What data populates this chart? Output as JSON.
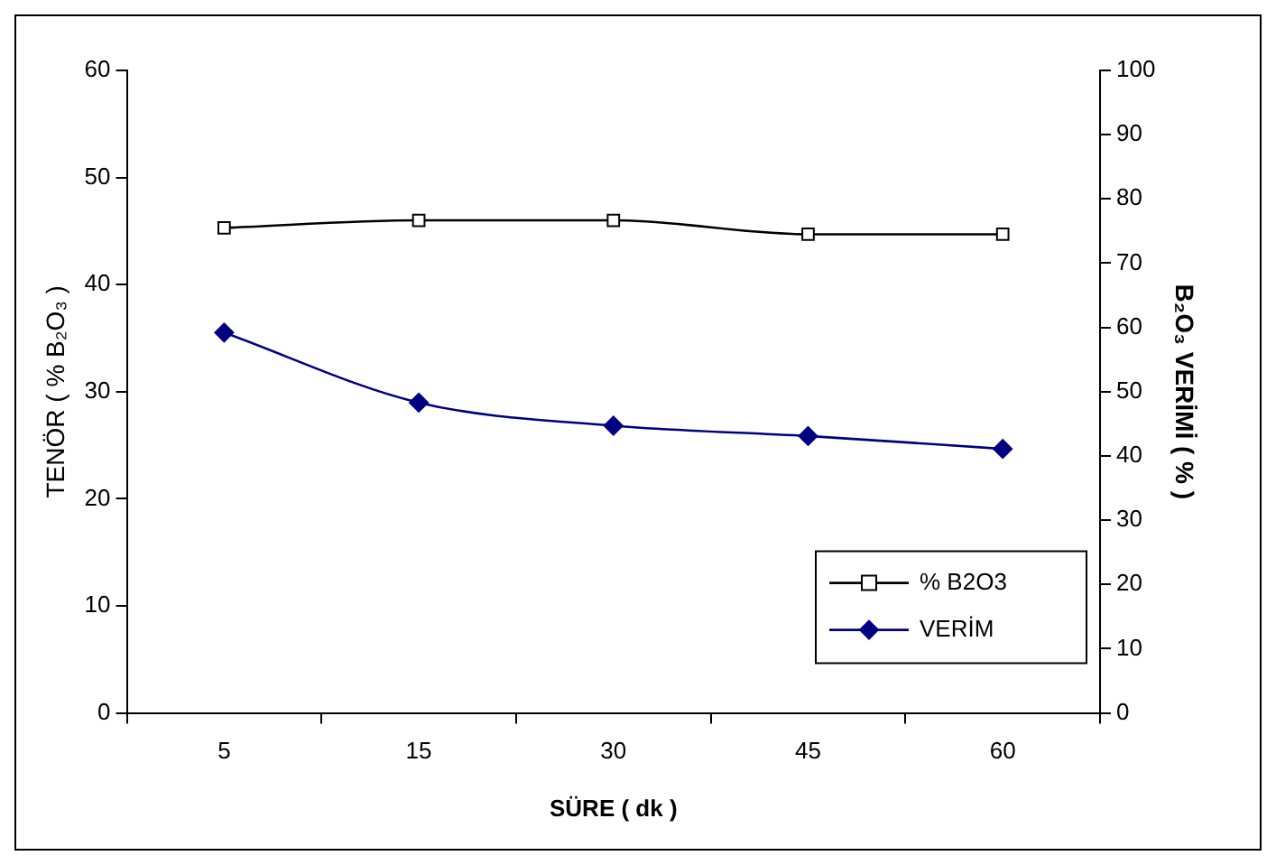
{
  "chart_data": {
    "type": "line",
    "xlabel": "SÜRE ( dk )",
    "ylabel": "TENÖR ( % B₂O₃ )",
    "y2label": "B₂O₃ VERİMİ ( % )",
    "categories": [
      "5",
      "15",
      "30",
      "45",
      "60"
    ],
    "series": [
      {
        "name": "% B2O3",
        "color": "#000000",
        "marker": "square",
        "values": [
          45.3,
          46,
          46,
          44.7,
          44.7
        ]
      },
      {
        "name": "VERİM",
        "color": "#000080",
        "marker": "diamond",
        "axis": "y2",
        "values": [
          59.2,
          48.3,
          44.7,
          43.1,
          41.1
        ]
      }
    ],
    "ylim": [
      0,
      60
    ],
    "yticks": [
      0,
      10,
      20,
      30,
      40,
      50,
      60
    ],
    "y2lim": [
      0,
      100
    ],
    "y2ticks": [
      0,
      10,
      20,
      30,
      40,
      50,
      60,
      70,
      80,
      90,
      100
    ],
    "grid": false,
    "legend": "bottom right",
    "line_style": "solid"
  }
}
